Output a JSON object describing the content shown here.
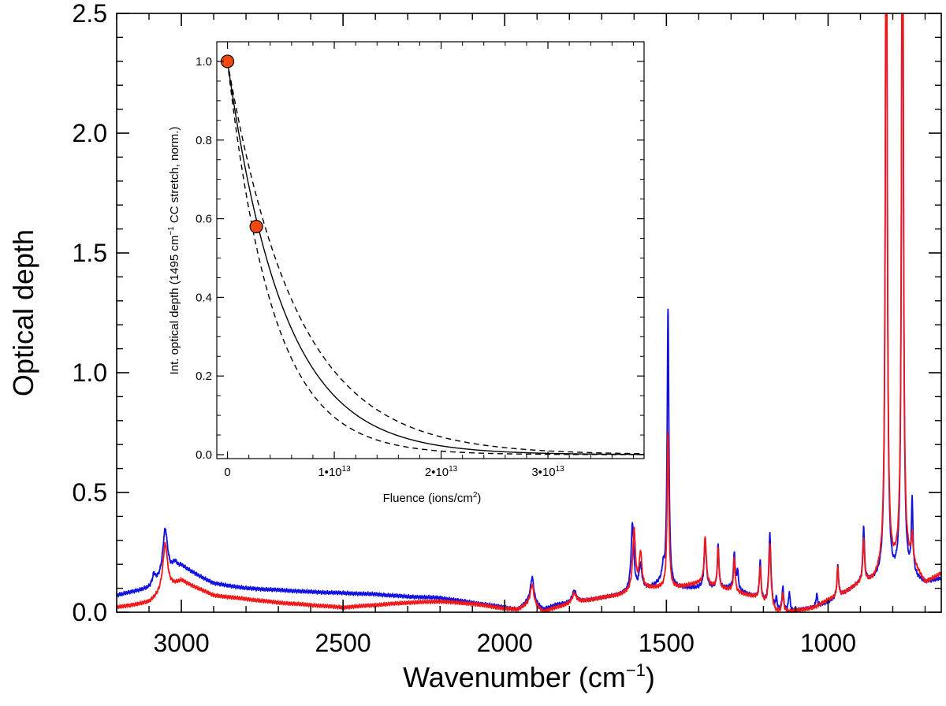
{
  "chart_data": [
    {
      "type": "line",
      "xlabel": "Wavenumber",
      "xlabel_unit": "(cm",
      "xlabel_sup": "−1",
      "xlabel_close": ")",
      "ylabel": "Optical depth",
      "xlim": [
        3200,
        650
      ],
      "ylim": [
        0.0,
        2.5
      ],
      "x_reversed": true,
      "x_ticks": [
        3000,
        2500,
        2000,
        1500,
        1000
      ],
      "y_ticks": [
        0.0,
        0.5,
        1.0,
        1.5,
        2.0,
        2.5
      ],
      "y_tick_labels": [
        "0.0",
        "0.5",
        "1.0",
        "1.5",
        "2.0",
        "2.5"
      ],
      "series": [
        {
          "color": "#1010e0",
          "baseline": [
            [
              3200,
              0.07
            ],
            [
              3100,
              0.1
            ],
            [
              3000,
              0.19
            ],
            [
              2900,
              0.12
            ],
            [
              2800,
              0.1
            ],
            [
              2600,
              0.085
            ],
            [
              2400,
              0.075
            ],
            [
              2300,
              0.065
            ],
            [
              2200,
              0.06
            ],
            [
              2100,
              0.04
            ],
            [
              2000,
              0.02
            ],
            [
              1960,
              0.01
            ],
            [
              1920,
              0.05
            ],
            [
              1880,
              0.01
            ],
            [
              1840,
              0.03
            ],
            [
              1780,
              0.04
            ],
            [
              1700,
              0.06
            ],
            [
              1650,
              0.07
            ],
            [
              1600,
              0.09
            ],
            [
              1550,
              0.1
            ],
            [
              1520,
              0.12
            ],
            [
              1480,
              0.1
            ],
            [
              1400,
              0.1
            ],
            [
              1300,
              0.1
            ],
            [
              1220,
              0.06
            ],
            [
              1160,
              0.0
            ],
            [
              1120,
              0.0
            ],
            [
              1080,
              0.01
            ],
            [
              1040,
              0.02
            ],
            [
              1000,
              0.04
            ],
            [
              960,
              0.07
            ],
            [
              900,
              0.12
            ],
            [
              860,
              0.13
            ],
            [
              820,
              0.15
            ],
            [
              800,
              0.13
            ],
            [
              770,
              0.14
            ],
            [
              740,
              0.14
            ],
            [
              700,
              0.12
            ],
            [
              650,
              0.14
            ]
          ],
          "peaks": [
            [
              3085,
              0.04,
              5
            ],
            [
              3050,
              0.2,
              9
            ],
            [
              3020,
              0.03,
              8
            ],
            [
              1915,
              0.1,
              6
            ],
            [
              1785,
              0.05,
              8
            ],
            [
              1605,
              0.28,
              5
            ],
            [
              1580,
              0.1,
              5
            ],
            [
              1510,
              0.06,
              4
            ],
            [
              1495,
              1.15,
              3.2
            ],
            [
              1380,
              0.2,
              4
            ],
            [
              1340,
              0.18,
              3
            ],
            [
              1290,
              0.15,
              3
            ],
            [
              1280,
              0.08,
              3
            ],
            [
              1210,
              0.16,
              3
            ],
            [
              1180,
              0.3,
              4
            ],
            [
              1160,
              0.05,
              3
            ],
            [
              1140,
              0.1,
              3
            ],
            [
              1120,
              0.08,
              3
            ],
            [
              1035,
              0.05,
              3
            ],
            [
              970,
              0.13,
              3
            ],
            [
              890,
              0.23,
              3
            ],
            [
              820,
              3.5,
              3
            ],
            [
              770,
              3.5,
              3
            ],
            [
              740,
              0.3,
              3
            ]
          ]
        },
        {
          "color": "#f01818",
          "baseline": [
            [
              3200,
              0.02
            ],
            [
              3100,
              0.04
            ],
            [
              3000,
              0.13
            ],
            [
              2900,
              0.07
            ],
            [
              2800,
              0.055
            ],
            [
              2700,
              0.04
            ],
            [
              2600,
              0.03
            ],
            [
              2500,
              0.02
            ],
            [
              2400,
              0.03
            ],
            [
              2300,
              0.04
            ],
            [
              2200,
              0.045
            ],
            [
              2100,
              0.035
            ],
            [
              2000,
              0.015
            ],
            [
              1960,
              0.01
            ],
            [
              1920,
              0.04
            ],
            [
              1880,
              0.0
            ],
            [
              1840,
              0.02
            ],
            [
              1780,
              0.04
            ],
            [
              1700,
              0.06
            ],
            [
              1650,
              0.07
            ],
            [
              1600,
              0.09
            ],
            [
              1550,
              0.1
            ],
            [
              1520,
              0.1
            ],
            [
              1480,
              0.1
            ],
            [
              1400,
              0.12
            ],
            [
              1300,
              0.09
            ],
            [
              1220,
              0.06
            ],
            [
              1160,
              0.0
            ],
            [
              1120,
              0.0
            ],
            [
              1080,
              0.01
            ],
            [
              1040,
              0.02
            ],
            [
              1000,
              0.05
            ],
            [
              960,
              0.07
            ],
            [
              900,
              0.12
            ],
            [
              860,
              0.13
            ],
            [
              820,
              0.2
            ],
            [
              800,
              0.18
            ],
            [
              770,
              0.2
            ],
            [
              740,
              0.2
            ],
            [
              700,
              0.12
            ],
            [
              650,
              0.16
            ]
          ],
          "peaks": [
            [
              3050,
              0.2,
              9
            ],
            [
              1915,
              0.08,
              6
            ],
            [
              1785,
              0.04,
              8
            ],
            [
              1600,
              0.25,
              5
            ],
            [
              1580,
              0.15,
              5
            ],
            [
              1495,
              0.65,
              3.2
            ],
            [
              1380,
              0.2,
              4
            ],
            [
              1340,
              0.16,
              3
            ],
            [
              1290,
              0.14,
              3
            ],
            [
              1210,
              0.14,
              3
            ],
            [
              1180,
              0.26,
              4
            ],
            [
              1140,
              0.08,
              3
            ],
            [
              970,
              0.12,
              3
            ],
            [
              890,
              0.18,
              3
            ],
            [
              820,
              3.5,
              3
            ],
            [
              770,
              3.5,
              3
            ],
            [
              740,
              0.1,
              3
            ]
          ]
        }
      ]
    },
    {
      "type": "line",
      "xlabel": "Fluence (ions/cm",
      "xlabel_sup": "2",
      "xlabel_close": ")",
      "ylabel": "Int. optical depth (1495 cm",
      "ylabel_sup": "−1",
      "ylabel_tail": " CC stretch, norm.)",
      "xlim": [
        -1000000000000.0,
        39000000000000.0
      ],
      "ylim": [
        -0.01,
        1.05
      ],
      "x_ticks": [
        0,
        10000000000000.0,
        20000000000000.0,
        30000000000000.0
      ],
      "x_tick_labels": [
        {
          "base": "0",
          "exp": ""
        },
        {
          "base": "1•10",
          "exp": "13"
        },
        {
          "base": "2•10",
          "exp": "13"
        },
        {
          "base": "3•10",
          "exp": "13"
        }
      ],
      "y_ticks": [
        0.0,
        0.2,
        0.4,
        0.6,
        0.8,
        1.0
      ],
      "y_tick_labels": [
        "0.0",
        "0.2",
        "0.4",
        "0.6",
        "0.8",
        "1.0"
      ],
      "fit_curve": {
        "function": "exp",
        "rate": 1.9e-13,
        "style": "solid"
      },
      "bounds": [
        {
          "rate": 1.55e-13,
          "style": "dashed"
        },
        {
          "rate": 2.35e-13,
          "style": "dashed"
        }
      ],
      "points": [
        {
          "x": 0,
          "y": 1.0
        },
        {
          "x": 2700000000000.0,
          "y": 0.58
        }
      ],
      "point_color": "#f04810"
    }
  ]
}
